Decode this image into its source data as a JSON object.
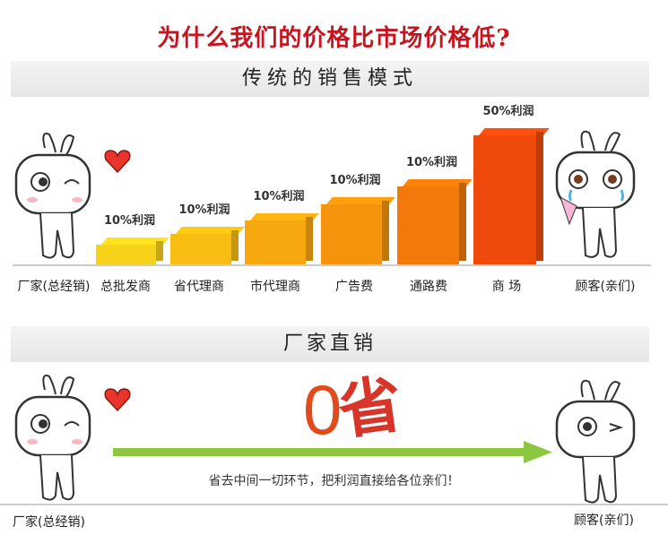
{
  "title": "为什么我们的价格比市场价格低?",
  "traditional": {
    "heading": "传统的销售模式",
    "stages": [
      "厂家(总经销)",
      "总批发商",
      "省代理商",
      "市代理商",
      "广告费",
      "通路费",
      "商 场",
      "顾客(亲们)"
    ],
    "bars": [
      {
        "label": "10%利润",
        "color": "#f7d21a"
      },
      {
        "label": "10%利润",
        "color": "#f7bd12"
      },
      {
        "label": "10%利润",
        "color": "#f6a80e"
      },
      {
        "label": "10%利润",
        "color": "#f5930c"
      },
      {
        "label": "10%利润",
        "color": "#f2790a"
      },
      {
        "label": "50%利润",
        "color": "#ef4a0c"
      }
    ]
  },
  "direct": {
    "heading": "厂家直销",
    "zero": "0",
    "save": "省",
    "caption": "省去中间一切环节，把利润直接给各位亲们！",
    "from": "厂家(总经销)",
    "to": "顾客(亲们)",
    "arrow_color": "#8dc63f"
  }
}
